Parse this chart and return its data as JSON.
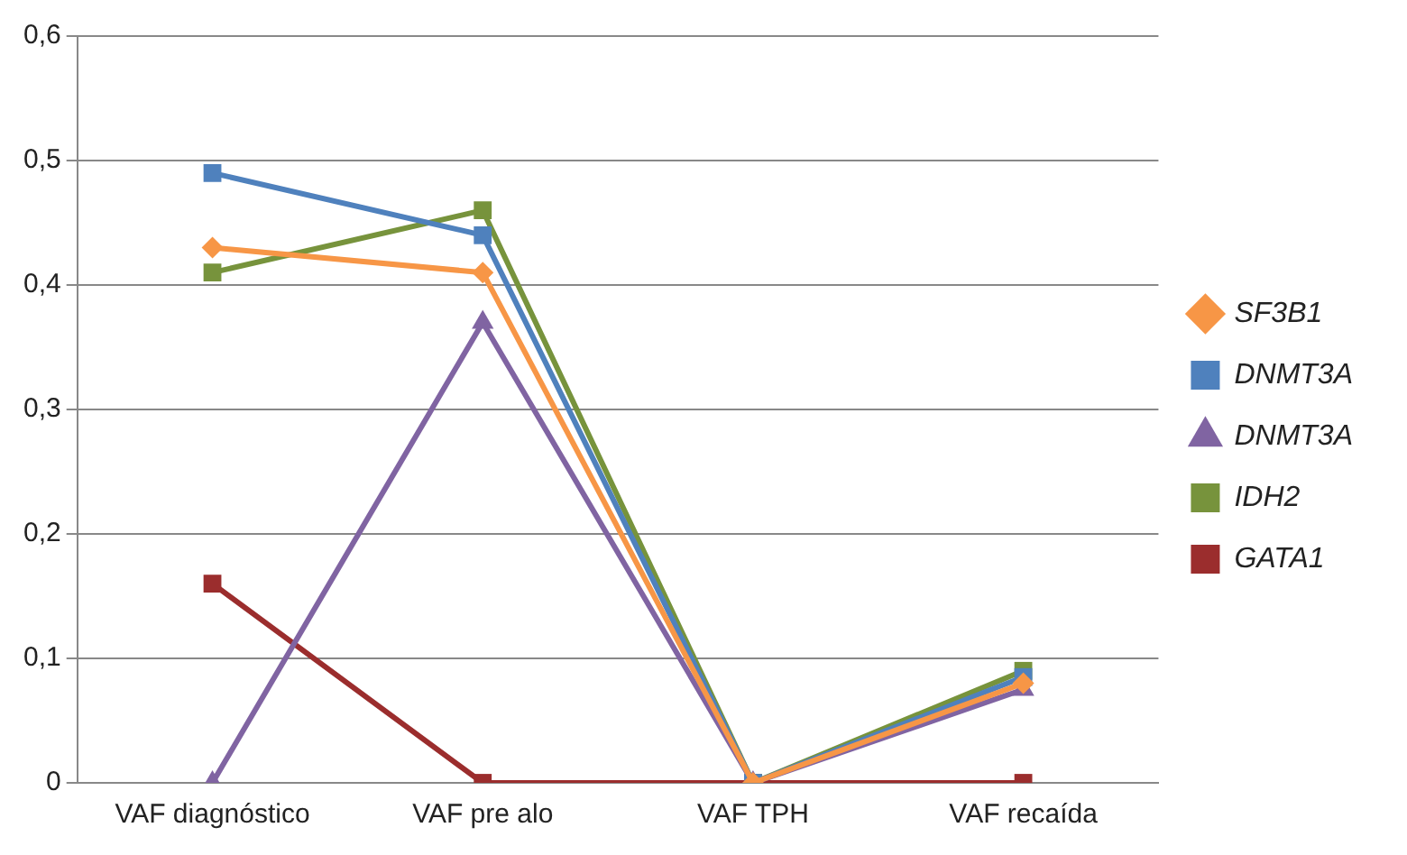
{
  "chart_data": {
    "type": "line",
    "categories": [
      "VAF diagnóstico",
      "VAF pre alo",
      "VAF TPH",
      "VAF recaída"
    ],
    "series": [
      {
        "name": "SF3B1",
        "color": "#f79646",
        "marker": "diamond",
        "values": [
          0.43,
          0.41,
          0,
          0.08
        ]
      },
      {
        "name": "DNMT3A",
        "color": "#4f81bd",
        "marker": "square",
        "values": [
          0.49,
          0.44,
          0,
          0.085
        ]
      },
      {
        "name": "DNMT3A",
        "color": "#8064a2",
        "marker": "triangle",
        "values": [
          0,
          0.37,
          0,
          0.075
        ]
      },
      {
        "name": "IDH2",
        "color": "#77933c",
        "marker": "square",
        "values": [
          0.41,
          0.46,
          0,
          0.09
        ]
      },
      {
        "name": "GATA1",
        "color": "#9b2d2d",
        "marker": "square",
        "values": [
          0.16,
          0,
          0,
          0
        ]
      }
    ],
    "ylim": [
      0,
      0.6
    ],
    "yticks": [
      {
        "value": 0,
        "label": "0"
      },
      {
        "value": 0.1,
        "label": "0,1"
      },
      {
        "value": 0.2,
        "label": "0,2"
      },
      {
        "value": 0.3,
        "label": "0,3"
      },
      {
        "value": 0.4,
        "label": "0,4"
      },
      {
        "value": 0.5,
        "label": "0,5"
      },
      {
        "value": 0.6,
        "label": "0,6"
      }
    ],
    "grid": "y",
    "legend": "right",
    "line_style": "solid"
  }
}
